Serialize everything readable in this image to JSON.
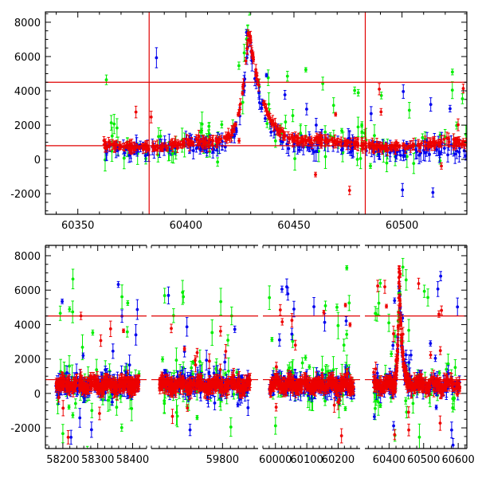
{
  "chart_data": [
    {
      "type": "scatter",
      "panel": "top",
      "title": "",
      "xlabel": "",
      "ylabel": "",
      "xlim": [
        60335,
        60530
      ],
      "ylim": [
        -3200,
        8600
      ],
      "xticks": [
        60350,
        60400,
        60450,
        60500
      ],
      "yticks": [
        -2000,
        0,
        2000,
        4000,
        6000,
        8000
      ],
      "hlines": [
        4500,
        800
      ],
      "vlines": [
        60383,
        60483
      ],
      "series_colors": [
        "#00ee00",
        "#0000ee",
        "#ee0000"
      ],
      "grid": false,
      "legend": "none"
    },
    {
      "type": "scatter",
      "panel": "bottom",
      "title": "",
      "xlabel": "",
      "ylabel": "",
      "ylim": [
        -3200,
        8600
      ],
      "yticks": [
        -2000,
        0,
        2000,
        4000,
        6000,
        8000
      ],
      "hlines": [
        4500,
        800
      ],
      "segments": [
        {
          "xlim": [
            58150,
            58440
          ],
          "xticks": [
            58200,
            58300,
            58400
          ],
          "data_range": [
            58180,
            58420
          ]
        },
        {
          "xlim": [
            59620,
            59890
          ],
          "xticks": [
            59800
          ],
          "data_range": [
            59640,
            59870
          ]
        },
        {
          "xlim": [
            59960,
            60270
          ],
          "xticks": [
            60000,
            60100,
            60200
          ],
          "data_range": [
            59980,
            60250
          ]
        },
        {
          "xlim": [
            60330,
            60625
          ],
          "xticks": [
            60400,
            60500,
            60600
          ],
          "data_range": [
            60355,
            60605
          ]
        }
      ],
      "series_colors": [
        "#00ee00",
        "#0000ee",
        "#ee0000"
      ],
      "grid": false,
      "legend": "none"
    }
  ]
}
